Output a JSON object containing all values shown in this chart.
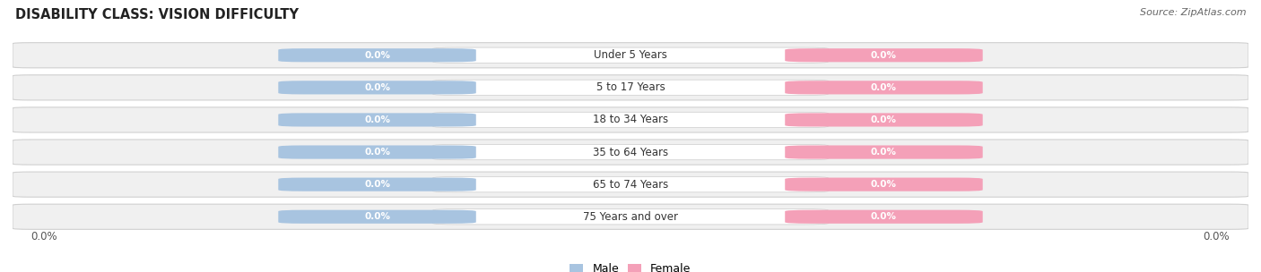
{
  "title": "DISABILITY CLASS: VISION DIFFICULTY",
  "source": "Source: ZipAtlas.com",
  "categories": [
    "Under 5 Years",
    "5 to 17 Years",
    "18 to 34 Years",
    "35 to 64 Years",
    "65 to 74 Years",
    "75 Years and over"
  ],
  "male_values": [
    0.0,
    0.0,
    0.0,
    0.0,
    0.0,
    0.0
  ],
  "female_values": [
    0.0,
    0.0,
    0.0,
    0.0,
    0.0,
    0.0
  ],
  "male_color": "#a8c4e0",
  "female_color": "#f4a0b8",
  "male_label": "Male",
  "female_label": "Female",
  "title_fontsize": 10.5,
  "background_color": "#ffffff",
  "row_color_odd": "#f0f0f0",
  "row_color_even": "#e8e8e8",
  "row_border_color": "#d0d0d0",
  "label_bg_color": "#ffffff",
  "left_axis_label": "0.0%",
  "right_axis_label": "0.0%"
}
